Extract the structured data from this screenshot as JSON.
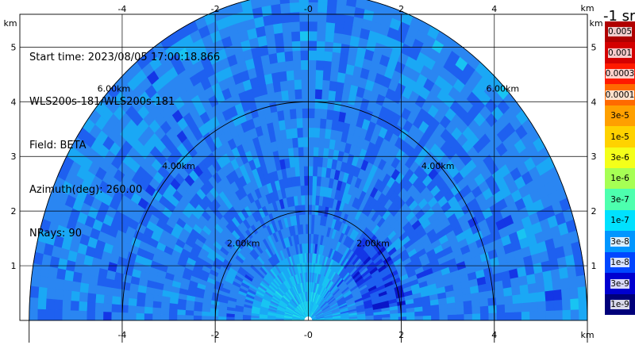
{
  "info": {
    "start_time": "Start time: 2023/08/05 17:00:18.866",
    "instrument": "WLS200s-181/WLS200s-181",
    "field": "Field: BETA",
    "azimuth": "Azimuth(deg): 260.00",
    "nrays": "NRays: 90"
  },
  "colorbar": {
    "title": "-1 sr",
    "labels": [
      "0.005",
      "0.001",
      "0.0003",
      "0.0001",
      "3e-5",
      "1e-5",
      "3e-6",
      "1e-6",
      "3e-7",
      "1e-7",
      "3e-8",
      "1e-8",
      "3e-9",
      "1e-9"
    ],
    "colors": [
      "#b00000",
      "#d40000",
      "#ff1a00",
      "#ff6a00",
      "#ffa000",
      "#ffd200",
      "#f4ff1a",
      "#a6ff54",
      "#4dffae",
      "#00e1ff",
      "#0096ff",
      "#0046ff",
      "#0000d0",
      "#00007a"
    ]
  },
  "chart_data": {
    "type": "heatmap",
    "title": "",
    "xlabel": "km",
    "ylabel": "km",
    "xlim": [
      -6.2,
      6.0
    ],
    "ylim": [
      0,
      5.6
    ],
    "x_ticks": [
      "-4",
      "-2",
      "-0",
      "2",
      "4"
    ],
    "y_ticks": [
      "1",
      "2",
      "3",
      "4",
      "5"
    ],
    "x_unit_label": "km",
    "y_unit_label": "km",
    "grid": true,
    "range_rings_km": [
      2,
      4,
      6
    ],
    "ring_labels": [
      "2.00km",
      "4.00km",
      "6.00km"
    ],
    "max_range_km": 6.0,
    "elevation_deg": [
      0,
      180
    ],
    "field": "BETA",
    "units": "sr-1",
    "color_scale": "log",
    "value_range": [
      1e-09,
      0.005
    ],
    "nrays": 90
  }
}
